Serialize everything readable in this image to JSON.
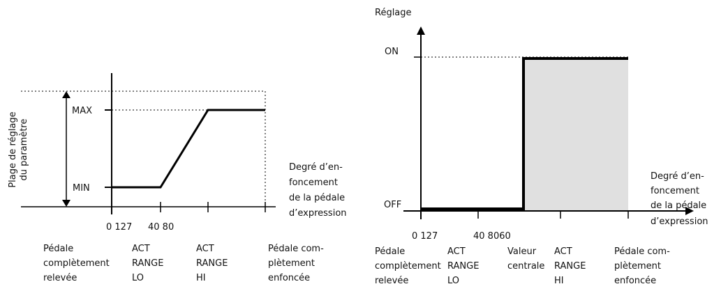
{
  "left": {
    "y_axis_title_line1": "Plage de réglage",
    "y_axis_title_line2": "du paramètre",
    "max_label": "MAX",
    "min_label": "MIN",
    "x_title": [
      "Degré d’en-",
      "foncement",
      "de la pédale",
      "d’expression"
    ],
    "ticks": [
      "0 127",
      "40 80"
    ],
    "bottom": {
      "pedal_up": [
        "Pédale",
        "complètement",
        "relevée"
      ],
      "act_lo": [
        "ACT",
        "RANGE",
        "LO"
      ],
      "act_hi": [
        "ACT",
        "RANGE",
        "HI"
      ],
      "pedal_down": [
        "Pédale com-",
        "plètement",
        "enfoncée"
      ]
    }
  },
  "right": {
    "y_axis_title": "Réglage",
    "on_label": "ON",
    "off_label": "OFF",
    "x_title": [
      "Degré d’en-",
      "foncement",
      "de la pédale",
      "d’expression"
    ],
    "ticks": [
      "0 127",
      "40 8060"
    ],
    "bottom": {
      "pedal_up": [
        "Pédale",
        "complètement",
        "relevée"
      ],
      "act_lo": [
        "ACT",
        "RANGE",
        "LO"
      ],
      "center": [
        "Valeur",
        "centrale"
      ],
      "act_hi": [
        "ACT",
        "RANGE",
        "HI"
      ],
      "pedal_down": [
        "Pédale com-",
        "plètement",
        "enfoncée"
      ]
    }
  },
  "colors": {
    "line": "#000000",
    "shade": "#e0e0e0"
  }
}
